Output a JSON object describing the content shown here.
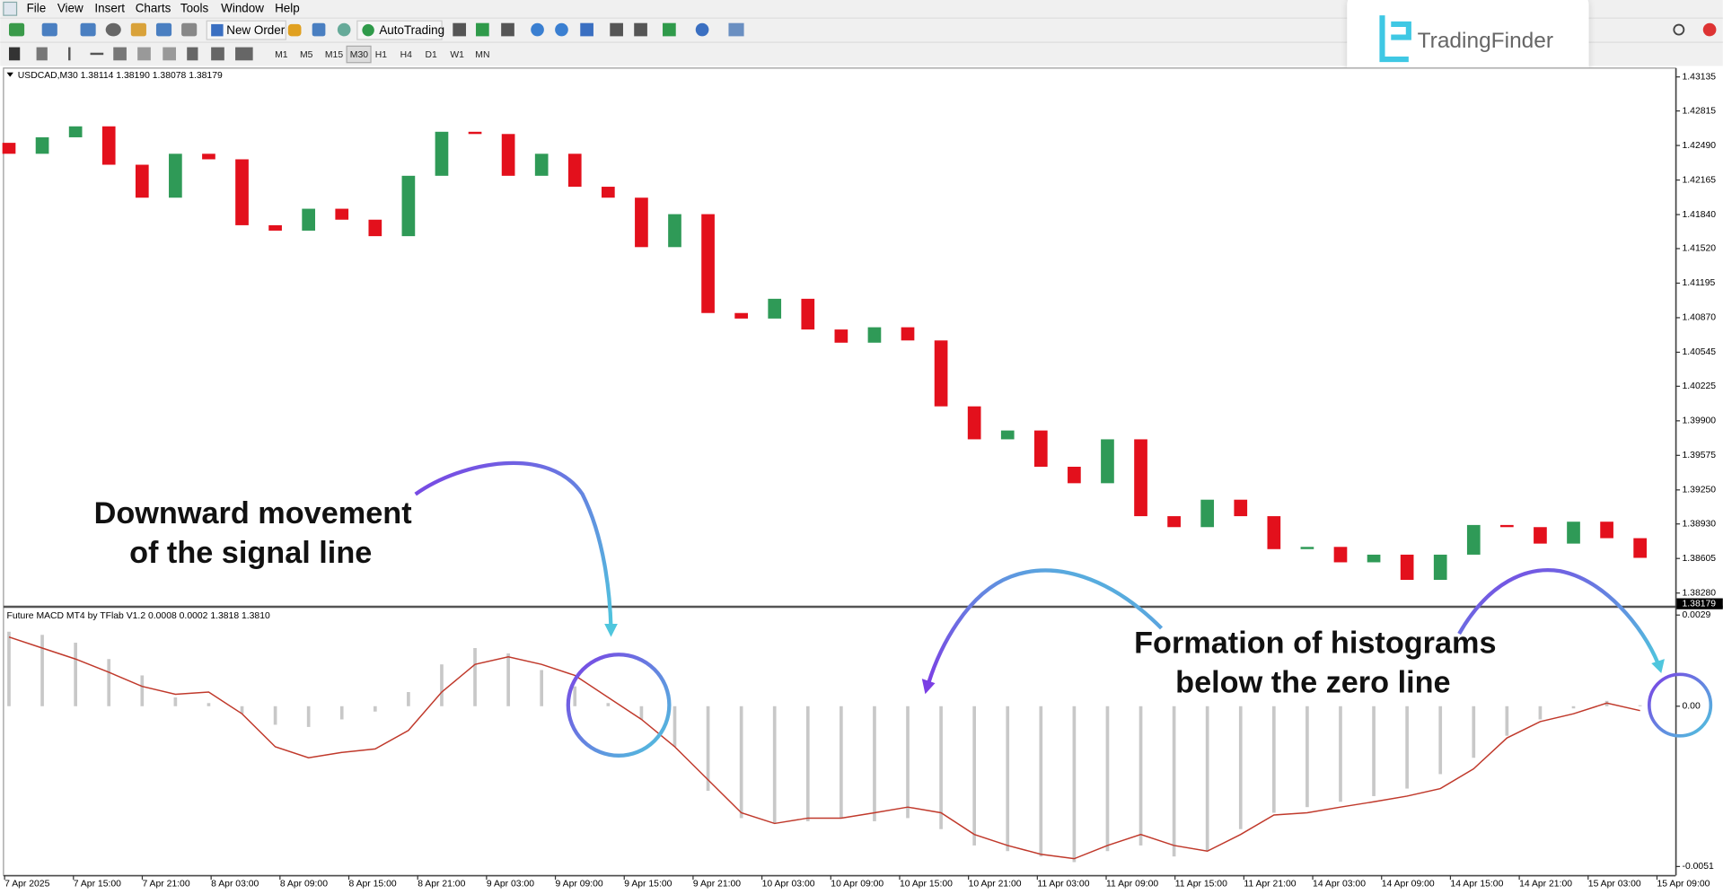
{
  "menu": [
    "File",
    "View",
    "Insert",
    "Charts",
    "Tools",
    "Window",
    "Help"
  ],
  "toolbar": {
    "new_order": "New Order",
    "auto_trading": "AutoTrading",
    "timeframes": [
      "M1",
      "M5",
      "M15",
      "M30",
      "H1",
      "H4",
      "D1",
      "W1",
      "MN"
    ]
  },
  "logo": "TradingFinder",
  "time_axis": [
    "7 Apr 2025",
    "7 Apr 15:00",
    "7 Apr 21:00",
    "8 Apr 03:00",
    "8 Apr 09:00",
    "8 Apr 15:00",
    "8 Apr 21:00",
    "9 Apr 03:00",
    "9 Apr 09:00",
    "9 Apr 15:00",
    "9 Apr 21:00",
    "10 Apr 03:00",
    "10 Apr 09:00",
    "10 Apr 15:00",
    "10 Apr 21:00",
    "11 Apr 03:00",
    "11 Apr 09:00",
    "11 Apr 15:00",
    "11 Apr 21:00",
    "14 Apr 03:00",
    "14 Apr 09:00",
    "14 Apr 15:00",
    "14 Apr 21:00",
    "15 Apr 03:00",
    "15 Apr 09:00"
  ],
  "annotations": [
    {
      "lines": [
        "Downward movement",
        "of the signal line"
      ]
    },
    {
      "lines": [
        "Formation of histograms",
        "below the zero line"
      ]
    }
  ],
  "chart_data": [
    {
      "type": "candlestick",
      "title": "USDCAD,M30  1.38114 1.38190 1.38078 1.38179",
      "open": [
        1.42515,
        1.42412,
        1.42567,
        1.4267,
        1.42309,
        1.41999,
        1.42412,
        1.4236,
        1.4174,
        1.41689,
        1.41895,
        1.41792,
        1.41637,
        1.42205,
        1.42619,
        1.42598,
        1.42205,
        1.42412,
        1.42102,
        1.41999,
        1.41534,
        1.41844,
        1.40914,
        1.40862,
        1.41048,
        1.40759,
        1.40635,
        1.4078,
        1.40656,
        1.40036,
        1.39726,
        1.39809,
        1.39468,
        1.39313,
        1.39726,
        1.39003,
        1.389,
        1.39158,
        1.39003,
        1.38693,
        1.38714,
        1.38569,
        1.38641,
        1.38404,
        1.38641,
        1.3892,
        1.389,
        1.38745,
        1.38951,
        1.38796
      ],
      "close": [
        1.42412,
        1.42567,
        1.4267,
        1.42309,
        1.41999,
        1.42412,
        1.4236,
        1.4174,
        1.41689,
        1.41895,
        1.41792,
        1.41637,
        1.42205,
        1.42619,
        1.42598,
        1.42205,
        1.42412,
        1.42102,
        1.41999,
        1.41534,
        1.41844,
        1.40914,
        1.40862,
        1.41048,
        1.40759,
        1.40635,
        1.4078,
        1.40656,
        1.40036,
        1.39726,
        1.39809,
        1.39468,
        1.39313,
        1.39726,
        1.39003,
        1.389,
        1.39158,
        1.39003,
        1.38693,
        1.38714,
        1.38569,
        1.38641,
        1.38404,
        1.38641,
        1.3892,
        1.389,
        1.38745,
        1.38951,
        1.38796,
        1.38611
      ],
      "up_color": "#2f9a57",
      "down_color": "#e3101c",
      "ylim": [
        1.38166,
        1.43218
      ],
      "yticks": [
        1.43135,
        1.42815,
        {
          "value": 1.4249,
          "label": "1.42490"
        },
        1.42165,
        {
          "value": 1.4184,
          "label": "1.41840"
        },
        {
          "value": 1.4152,
          "label": "1.41520"
        },
        1.41195,
        {
          "value": 1.4087,
          "label": "1.40870"
        },
        1.40545,
        1.40225,
        {
          "value": 1.399,
          "label": "1.39900"
        },
        1.39575,
        {
          "value": 1.3925,
          "label": "1.39250"
        },
        {
          "value": 1.3893,
          "label": "1.38930"
        },
        1.38605,
        {
          "value": 1.3828,
          "label": "1.38280"
        }
      ],
      "last_price": 1.38179
    },
    {
      "type": "macd",
      "title": "Future MACD MT4 by TFlab V1.2 0.0008 0.0002 1.3818 1.3810",
      "histogram": [
        0.00237,
        0.00227,
        0.00202,
        0.0015,
        0.00098,
        0.00028,
        0.0001,
        -0.00024,
        -0.00059,
        -0.00066,
        -0.00042,
        -0.00017,
        0.00045,
        0.00133,
        0.00185,
        0.00168,
        0.00115,
        0.00063,
        0.0001,
        -0.00042,
        -0.00129,
        -0.00269,
        -0.00356,
        -0.00373,
        -0.00366,
        -0.00356,
        -0.00366,
        -0.00356,
        -0.00391,
        -0.00443,
        -0.00461,
        -0.00478,
        -0.00496,
        -0.00461,
        -0.00443,
        -0.00478,
        -0.00461,
        -0.00391,
        -0.00339,
        -0.00321,
        -0.00304,
        -0.00286,
        -0.00262,
        -0.00216,
        -0.00164,
        -0.00094,
        -0.00042,
        -7e-05,
        0.00017,
        3e-05
      ],
      "signal": [
        0.0022,
        0.00185,
        0.0015,
        0.00108,
        0.00063,
        0.00038,
        0.00045,
        -0.00024,
        -0.00129,
        -0.00164,
        -0.00147,
        -0.00136,
        -0.00077,
        0.00045,
        0.00133,
        0.00157,
        0.00133,
        0.00098,
        0.00028,
        -0.00042,
        -0.00129,
        -0.00234,
        -0.00339,
        -0.00373,
        -0.00356,
        -0.00356,
        -0.00339,
        -0.00321,
        -0.00339,
        -0.00408,
        -0.00443,
        -0.00471,
        -0.00485,
        -0.00443,
        -0.00408,
        -0.00443,
        -0.00461,
        -0.00408,
        -0.00346,
        -0.00339,
        -0.00321,
        -0.00304,
        -0.00286,
        -0.00262,
        -0.00199,
        -0.00101,
        -0.00049,
        -0.00024,
        0.0001,
        -0.00014
      ],
      "histogram_color": "#c8c8c8",
      "signal_color": "#c0392b",
      "ylim": [
        -0.00538,
        0.00311
      ],
      "yticks": [
        0.0029,
        {
          "value": 0,
          "label": "0.00"
        },
        -0.0051
      ]
    }
  ]
}
